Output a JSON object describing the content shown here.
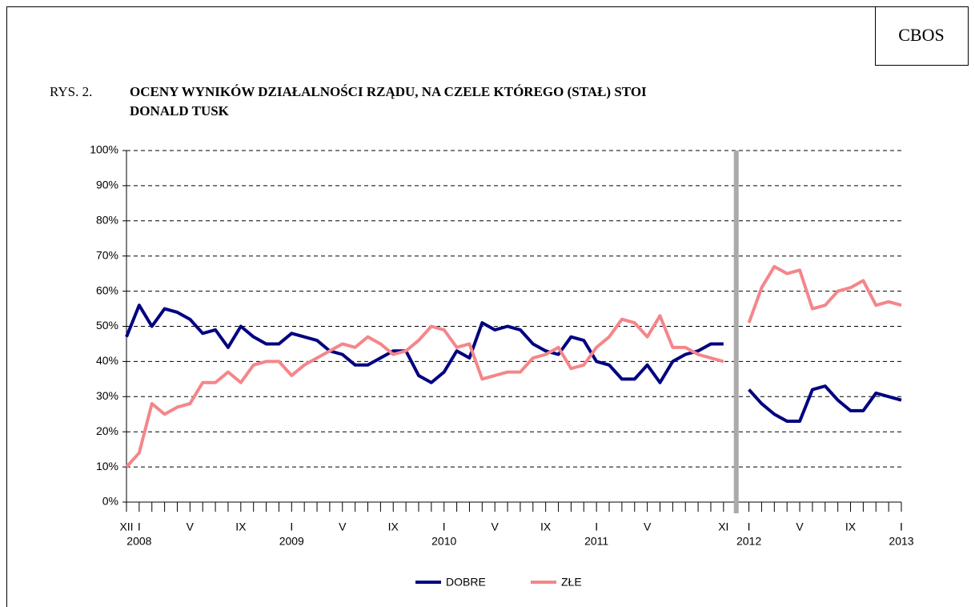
{
  "corner_label": "CBOS",
  "figure_label": "RYS. 2.",
  "chart_data": {
    "type": "line",
    "title": [
      "OCENY WYNIKÓW DZIAŁALNOŚCI RZĄDU, NA CZELE KTÓREGO (STAŁ) STOI",
      "DONALD TUSK"
    ],
    "categories": [
      "XII",
      "I",
      null,
      null,
      null,
      "V",
      null,
      null,
      null,
      "IX",
      null,
      null,
      null,
      "I",
      null,
      null,
      null,
      "V",
      null,
      null,
      null,
      "IX",
      null,
      null,
      null,
      "I",
      null,
      null,
      null,
      "V",
      null,
      null,
      null,
      "IX",
      null,
      null,
      null,
      "I",
      null,
      null,
      null,
      "V",
      null,
      null,
      null,
      null,
      null,
      "XI",
      null,
      "I",
      null,
      null,
      null,
      "V",
      null,
      null,
      null,
      "IX",
      null,
      null,
      null,
      "I"
    ],
    "year_labels": [
      null,
      "2008",
      null,
      null,
      null,
      null,
      null,
      null,
      null,
      null,
      null,
      null,
      null,
      "2009",
      null,
      null,
      null,
      null,
      null,
      null,
      null,
      null,
      null,
      null,
      null,
      "2010",
      null,
      null,
      null,
      null,
      null,
      null,
      null,
      null,
      null,
      null,
      null,
      "2011",
      null,
      null,
      null,
      null,
      null,
      null,
      null,
      null,
      null,
      null,
      null,
      "2012",
      null,
      null,
      null,
      null,
      null,
      null,
      null,
      null,
      null,
      null,
      null,
      "2013"
    ],
    "series": [
      {
        "name": "DOBRE",
        "color": "#000080",
        "values": [
          47,
          56,
          50,
          55,
          54,
          52,
          48,
          49,
          44,
          50,
          47,
          45,
          45,
          48,
          47,
          46,
          43,
          42,
          39,
          39,
          41,
          43,
          43,
          36,
          34,
          37,
          43,
          41,
          51,
          49,
          50,
          49,
          45,
          43,
          42,
          47,
          46,
          40,
          39,
          35,
          35,
          39,
          34,
          40,
          42,
          43,
          45,
          45,
          null,
          32,
          28,
          25,
          23,
          23,
          32,
          33,
          29,
          26,
          26,
          31,
          30,
          29
        ]
      },
      {
        "name": "ZŁE",
        "color": "#f4868a",
        "values": [
          10,
          14,
          28,
          25,
          27,
          28,
          34,
          34,
          37,
          34,
          39,
          40,
          40,
          36,
          39,
          41,
          43,
          45,
          44,
          47,
          45,
          42,
          43,
          46,
          50,
          49,
          44,
          45,
          35,
          36,
          37,
          37,
          41,
          42,
          44,
          38,
          39,
          44,
          47,
          52,
          51,
          47,
          53,
          44,
          44,
          42,
          41,
          40,
          null,
          51,
          61,
          67,
          65,
          66,
          55,
          56,
          60,
          61,
          63,
          56,
          57,
          56
        ]
      }
    ],
    "ylim": [
      0,
      100
    ],
    "yticks": [
      {
        "value": 0,
        "label": "0%"
      },
      {
        "value": 10,
        "label": "10%"
      },
      {
        "value": 20,
        "label": "20%"
      },
      {
        "value": 30,
        "label": "30%"
      },
      {
        "value": 40,
        "label": "40%"
      },
      {
        "value": 50,
        "label": "50%"
      },
      {
        "value": 60,
        "label": "60%"
      },
      {
        "value": 70,
        "label": "70%"
      },
      {
        "value": 80,
        "label": "80%"
      },
      {
        "value": 90,
        "label": "90%"
      },
      {
        "value": 100,
        "label": "100%"
      }
    ],
    "grid": true,
    "legend": "bottom"
  }
}
